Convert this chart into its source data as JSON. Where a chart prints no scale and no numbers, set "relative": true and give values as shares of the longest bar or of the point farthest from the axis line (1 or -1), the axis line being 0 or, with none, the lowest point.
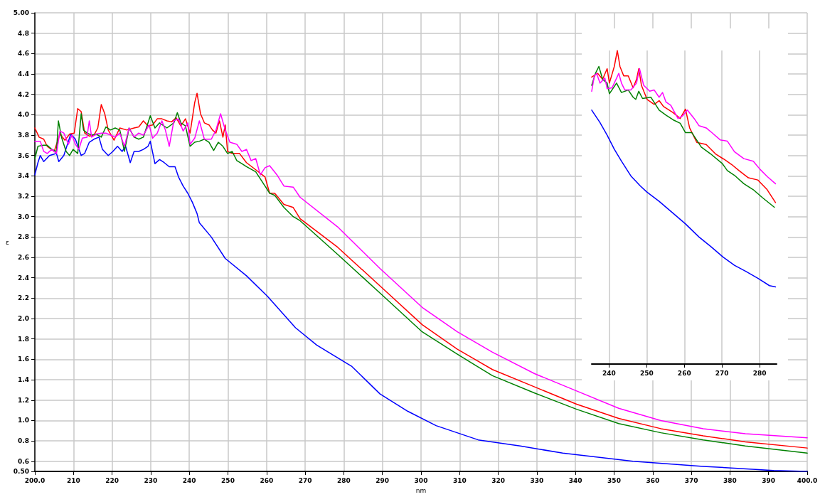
{
  "chart_data": [
    {
      "type": "line",
      "xlabel": "nm",
      "ylabel": "ε",
      "xlim": [
        200,
        400
      ],
      "ylim": [
        0.5,
        5
      ],
      "xticks": [
        {
          "value": 200,
          "label": "200.0"
        },
        210,
        220,
        230,
        240,
        250,
        260,
        270,
        280,
        290,
        300,
        310,
        320,
        330,
        340,
        350,
        360,
        370,
        380,
        390,
        {
          "value": 400,
          "label": "400.0"
        }
      ],
      "yticks": [
        {
          "value": 0.5,
          "label": "0.50"
        },
        0.6,
        0.8,
        {
          "value": 1,
          "label": "1.0"
        },
        1.2,
        1.4,
        1.6,
        1.8,
        {
          "value": 2,
          "label": "2.0"
        },
        2.2,
        2.4,
        2.6,
        2.8,
        {
          "value": 3,
          "label": "3.0"
        },
        3.2,
        3.4,
        3.6,
        3.8,
        {
          "value": 4,
          "label": "4.0"
        },
        4.2,
        4.4,
        4.6,
        4.8,
        {
          "value": 5,
          "label": "5.00"
        }
      ],
      "grid": true,
      "marker": "none",
      "line_style": "solid",
      "series": [
        {
          "color": "#0000ff",
          "x": [
            200,
            200.8,
            201.4,
            202.3,
            203.8,
            205.6,
            206.2,
            207.5,
            209.3,
            210.5,
            212,
            212.9,
            214.1,
            215.3,
            216.6,
            217.5,
            219,
            220.2,
            221.4,
            222.6,
            223.5,
            224.7,
            225.7,
            226.9,
            228.1,
            229.3,
            229.9,
            231.1,
            232.3,
            233.5,
            234.8,
            236.3,
            237.2,
            238.4,
            239.6,
            240.8,
            242,
            242.6,
            245.7,
            249.3,
            254.8,
            260.2,
            267.5,
            273,
            282.1,
            289.4,
            296.6,
            303.9,
            314.8,
            325.7,
            336.7,
            354.9,
            373.1,
            391.3,
            400
          ],
          "values": [
            3.41,
            3.53,
            3.6,
            3.54,
            3.6,
            3.62,
            3.54,
            3.6,
            3.81,
            3.76,
            3.6,
            3.62,
            3.73,
            3.76,
            3.78,
            3.66,
            3.6,
            3.64,
            3.69,
            3.64,
            3.69,
            3.53,
            3.64,
            3.64,
            3.66,
            3.69,
            3.74,
            3.52,
            3.56,
            3.53,
            3.49,
            3.49,
            3.39,
            3.3,
            3.23,
            3.14,
            3.03,
            2.94,
            2.8,
            2.59,
            2.42,
            2.22,
            1.91,
            1.74,
            1.53,
            1.26,
            1.09,
            0.95,
            0.81,
            0.75,
            0.68,
            0.6,
            0.55,
            0.51,
            0.5
          ]
        },
        {
          "color": "#ff0000",
          "x": [
            200,
            201.1,
            202.3,
            203.2,
            205,
            206.5,
            207.8,
            209,
            210.2,
            211.1,
            212,
            212.9,
            214.1,
            215.3,
            216.3,
            217.2,
            218.1,
            219,
            220.5,
            222,
            223.8,
            225.7,
            226.9,
            228.1,
            229.3,
            230.5,
            231.7,
            232.9,
            234.2,
            235.4,
            236.6,
            237.8,
            239,
            240.2,
            241.4,
            242,
            242.9,
            243.9,
            245.1,
            246,
            246.9,
            247.8,
            248.7,
            249.3,
            249.9,
            251.1,
            253,
            254.8,
            257.2,
            259.6,
            260.8,
            262.1,
            264.5,
            266.9,
            268.7,
            278.4,
            289.4,
            300.3,
            309.4,
            318.5,
            329.4,
            340.3,
            351.2,
            362.1,
            373.1,
            384,
            400
          ],
          "values": [
            3.87,
            3.78,
            3.76,
            3.69,
            3.64,
            3.81,
            3.75,
            3.81,
            3.82,
            4.06,
            4.03,
            3.82,
            3.79,
            3.8,
            3.87,
            4.1,
            4.01,
            3.85,
            3.75,
            3.87,
            3.85,
            3.87,
            3.88,
            3.94,
            3.89,
            3.9,
            3.96,
            3.96,
            3.94,
            3.93,
            3.97,
            3.89,
            3.96,
            3.82,
            4.12,
            4.21,
            4.01,
            3.92,
            3.9,
            3.85,
            3.82,
            3.94,
            3.78,
            3.9,
            3.64,
            3.62,
            3.62,
            3.53,
            3.46,
            3.39,
            3.23,
            3.23,
            3.12,
            3.09,
            2.98,
            2.7,
            2.32,
            1.94,
            1.7,
            1.5,
            1.33,
            1.16,
            1.02,
            0.92,
            0.85,
            0.79,
            0.73
          ]
        },
        {
          "color": "#008000",
          "x": [
            200,
            200.8,
            202,
            203.2,
            204.4,
            205.6,
            206.1,
            206.9,
            208.1,
            209,
            209.9,
            211.1,
            212,
            212.6,
            213.5,
            214.7,
            215.9,
            217.2,
            218.4,
            219.6,
            220.8,
            222,
            223.2,
            224.4,
            225.7,
            226.9,
            228.1,
            229.9,
            231.1,
            232.3,
            234.2,
            236,
            236.9,
            237.8,
            239,
            240.2,
            241.4,
            242.6,
            243.9,
            245.1,
            246.3,
            247.5,
            248.7,
            249.9,
            251.1,
            252.3,
            253.6,
            254.8,
            257.2,
            259.6,
            260.8,
            262.1,
            264.5,
            266.9,
            268.7,
            278.4,
            289.4,
            300.3,
            309.4,
            318.5,
            329.4,
            340.3,
            351.2,
            362.1,
            373.1,
            384,
            400
          ],
          "values": [
            3.57,
            3.69,
            3.7,
            3.7,
            3.66,
            3.64,
            3.94,
            3.78,
            3.64,
            3.6,
            3.66,
            3.62,
            4.01,
            3.85,
            3.82,
            3.8,
            3.81,
            3.78,
            3.88,
            3.85,
            3.87,
            3.85,
            3.64,
            3.87,
            3.78,
            3.76,
            3.78,
            3.99,
            3.87,
            3.92,
            3.87,
            3.92,
            4.02,
            3.92,
            3.89,
            3.69,
            3.73,
            3.74,
            3.76,
            3.73,
            3.65,
            3.73,
            3.69,
            3.62,
            3.64,
            3.55,
            3.52,
            3.49,
            3.44,
            3.3,
            3.23,
            3.21,
            3.09,
            3,
            2.96,
            2.63,
            2.25,
            1.87,
            1.65,
            1.44,
            1.27,
            1.11,
            0.97,
            0.88,
            0.81,
            0.75,
            0.68
          ]
        },
        {
          "color": "#ff00ff",
          "x": [
            200,
            201.4,
            202.3,
            203.2,
            204.4,
            205.6,
            206.5,
            207.5,
            208.7,
            209.6,
            210.5,
            211.4,
            212.3,
            213.5,
            214.1,
            214.7,
            215.9,
            217.2,
            218.4,
            219.6,
            220.8,
            222,
            223.2,
            224.4,
            225.7,
            226.9,
            228.1,
            229.6,
            230.5,
            231.7,
            232.9,
            233.8,
            234.8,
            236,
            237.2,
            238.4,
            239.6,
            240.2,
            241.4,
            242.6,
            243.9,
            245.7,
            246.9,
            248.1,
            249.3,
            250.5,
            252.3,
            253.6,
            254.8,
            256,
            257.2,
            258.4,
            259.6,
            260.8,
            262.7,
            264.5,
            266.9,
            268.7,
            278.4,
            289.4,
            300.3,
            309.4,
            318.5,
            329.4,
            340.3,
            351.2,
            362.1,
            373.1,
            384,
            400
          ],
          "values": [
            3.74,
            3.74,
            3.64,
            3.62,
            3.66,
            3.62,
            3.84,
            3.82,
            3.71,
            3.8,
            3.71,
            3.66,
            3.77,
            3.78,
            3.94,
            3.78,
            3.81,
            3.82,
            3.82,
            3.8,
            3.78,
            3.82,
            3.69,
            3.87,
            3.78,
            3.82,
            3.8,
            3.9,
            3.77,
            3.82,
            3.94,
            3.85,
            3.69,
            3.94,
            3.96,
            3.84,
            3.92,
            3.71,
            3.77,
            3.94,
            3.76,
            3.76,
            3.85,
            4.01,
            3.85,
            3.73,
            3.71,
            3.64,
            3.66,
            3.55,
            3.57,
            3.41,
            3.48,
            3.5,
            3.41,
            3.3,
            3.29,
            3.19,
            2.9,
            2.49,
            2.11,
            1.87,
            1.67,
            1.46,
            1.29,
            1.12,
            1.0,
            0.92,
            0.87,
            0.83
          ]
        }
      ]
    },
    {
      "type": "line",
      "relative": true,
      "xlim": [
        235.4,
        284.5
      ],
      "xticks": [
        240,
        250,
        260,
        270,
        280
      ],
      "tick_labels": "x",
      "grid": "x",
      "marker": "none",
      "line_style": "solid",
      "series": [
        {
          "color": "#0000ff",
          "x": [
            235.4,
            237.6,
            239.5,
            241.4,
            243.3,
            245.8,
            248.3,
            250,
            253.3,
            257,
            260.3,
            263.9,
            267,
            270.3,
            273.3,
            276.4,
            279.6,
            282.6,
            284.2
          ],
          "values": [
            0.81,
            0.77,
            0.73,
            0.685,
            0.647,
            0.6,
            0.568,
            0.549,
            0.519,
            0.481,
            0.447,
            0.405,
            0.375,
            0.341,
            0.315,
            0.295,
            0.273,
            0.25,
            0.246
          ]
        },
        {
          "color": "#ff0000",
          "x": [
            235.4,
            237,
            238.3,
            239.5,
            240.1,
            241.4,
            242.2,
            242.9,
            243.9,
            245.1,
            246.4,
            247.3,
            247.9,
            248.6,
            250.1,
            252,
            253.3,
            254.5,
            257,
            258.9,
            260.3,
            261.4,
            263.3,
            265.8,
            268.3,
            270.8,
            272.6,
            274.5,
            277,
            279.5,
            282,
            284.2
          ],
          "values": [
            0.915,
            0.927,
            0.908,
            0.942,
            0.896,
            0.949,
            1,
            0.949,
            0.919,
            0.919,
            0.881,
            0.908,
            0.942,
            0.889,
            0.844,
            0.828,
            0.84,
            0.821,
            0.802,
            0.783,
            0.813,
            0.753,
            0.707,
            0.7,
            0.67,
            0.651,
            0.636,
            0.617,
            0.594,
            0.587,
            0.556,
            0.515
          ]
        },
        {
          "color": "#008000",
          "x": [
            235.4,
            236.4,
            237.3,
            238.3,
            239.5,
            240.1,
            242,
            243.3,
            245.1,
            246.4,
            247.1,
            247.9,
            248.9,
            251.1,
            253.3,
            255.1,
            257,
            258.9,
            260.3,
            262,
            264.5,
            267,
            270.1,
            271.4,
            273.3,
            275.8,
            278.3,
            280.8,
            283.9
          ],
          "values": [
            0.889,
            0.927,
            0.949,
            0.908,
            0.896,
            0.862,
            0.896,
            0.866,
            0.874,
            0.851,
            0.844,
            0.87,
            0.847,
            0.851,
            0.81,
            0.794,
            0.779,
            0.768,
            0.738,
            0.738,
            0.692,
            0.67,
            0.639,
            0.617,
            0.602,
            0.575,
            0.556,
            0.53,
            0.5
          ]
        },
        {
          "color": "#ff00ff",
          "x": [
            235.4,
            236.1,
            236.7,
            237.6,
            238.9,
            239.5,
            240.8,
            242.6,
            243.3,
            244.2,
            245.8,
            247.3,
            248.1,
            249.2,
            250.8,
            252,
            253.3,
            254.2,
            255.1,
            256.4,
            258.3,
            259.5,
            260.8,
            262.6,
            263.9,
            265.8,
            267.3,
            269.5,
            271.4,
            273.3,
            275.8,
            278.3,
            280.1,
            282,
            284.2
          ],
          "values": [
            0.87,
            0.919,
            0.927,
            0.896,
            0.912,
            0.878,
            0.881,
            0.927,
            0.896,
            0.874,
            0.874,
            0.896,
            0.942,
            0.889,
            0.87,
            0.874,
            0.851,
            0.866,
            0.836,
            0.825,
            0.783,
            0.791,
            0.81,
            0.783,
            0.76,
            0.753,
            0.738,
            0.715,
            0.711,
            0.677,
            0.655,
            0.647,
            0.621,
            0.598,
            0.575
          ]
        }
      ]
    }
  ]
}
